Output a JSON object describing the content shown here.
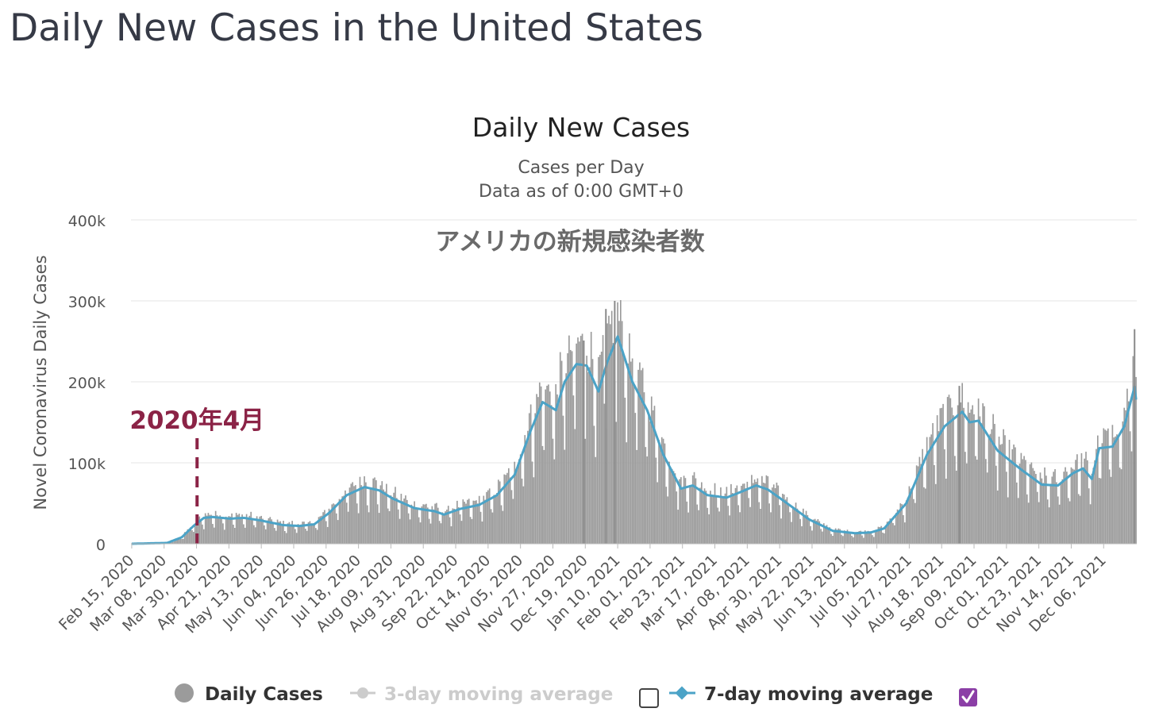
{
  "page": {
    "title": "Daily New Cases in the United States"
  },
  "chart_data": {
    "type": "bar",
    "title": "Daily New Cases",
    "subtitle_lines": [
      "Cases per Day",
      "Data as of 0:00 GMT+0"
    ],
    "overlay_text": "アメリカの新規感染者数",
    "ylabel": "Novel Coronavirus Daily Cases",
    "xlabel": "",
    "ylim": [
      0,
      400000
    ],
    "y_ticks": [
      {
        "value": 0,
        "label": "0"
      },
      {
        "value": 100000,
        "label": "100k"
      },
      {
        "value": 200000,
        "label": "200k"
      },
      {
        "value": 300000,
        "label": "300k"
      },
      {
        "value": 400000,
        "label": "400k"
      }
    ],
    "x_range": [
      "2020-02-15",
      "2021-12-28"
    ],
    "x_tick_labels": [
      {
        "date": "2020-02-15",
        "label": "Feb 15, 2020"
      },
      {
        "date": "2020-03-08",
        "label": "Mar 08, 2020"
      },
      {
        "date": "2020-03-30",
        "label": "Mar 30, 2020"
      },
      {
        "date": "2020-04-21",
        "label": "Apr 21, 2020"
      },
      {
        "date": "2020-05-13",
        "label": "May 13, 2020"
      },
      {
        "date": "2020-06-04",
        "label": "Jun 04, 2020"
      },
      {
        "date": "2020-06-26",
        "label": "Jun 26, 2020"
      },
      {
        "date": "2020-07-18",
        "label": "Jul 18, 2020"
      },
      {
        "date": "2020-08-09",
        "label": "Aug 09, 2020"
      },
      {
        "date": "2020-08-31",
        "label": "Aug 31, 2020"
      },
      {
        "date": "2020-09-22",
        "label": "Sep 22, 2020"
      },
      {
        "date": "2020-10-14",
        "label": "Oct 14, 2020"
      },
      {
        "date": "2020-11-05",
        "label": "Nov 05, 2020"
      },
      {
        "date": "2020-11-27",
        "label": "Nov 27, 2020"
      },
      {
        "date": "2020-12-19",
        "label": "Dec 19, 2020"
      },
      {
        "date": "2021-01-10",
        "label": "Jan 10, 2021"
      },
      {
        "date": "2021-02-01",
        "label": "Feb 01, 2021"
      },
      {
        "date": "2021-02-23",
        "label": "Feb 23, 2021"
      },
      {
        "date": "2021-03-17",
        "label": "Mar 17, 2021"
      },
      {
        "date": "2021-04-08",
        "label": "Apr 08, 2021"
      },
      {
        "date": "2021-04-30",
        "label": "Apr 30, 2021"
      },
      {
        "date": "2021-05-22",
        "label": "May 22, 2021"
      },
      {
        "date": "2021-06-13",
        "label": "Jun 13, 2021"
      },
      {
        "date": "2021-07-05",
        "label": "Jul 05, 2021"
      },
      {
        "date": "2021-07-27",
        "label": "Jul 27, 2021"
      },
      {
        "date": "2021-08-18",
        "label": "Aug 18, 2021"
      },
      {
        "date": "2021-09-09",
        "label": "Sep 09, 2021"
      },
      {
        "date": "2021-10-01",
        "label": "Oct 01, 2021"
      },
      {
        "date": "2021-10-23",
        "label": "Oct 23, 2021"
      },
      {
        "date": "2021-11-14",
        "label": "Nov 14, 2021"
      },
      {
        "date": "2021-12-06",
        "label": "Dec 06, 2021"
      }
    ],
    "annotation": {
      "label": "2020年4月",
      "date": "2020-04-01",
      "color": "#8b2346"
    },
    "series": [
      {
        "name": "Daily Cases",
        "kind": "bar",
        "color": "#9b9b9b",
        "visible": true,
        "shape": "daily bars; weekly dips; values follow the 7-day average with approx ±12% noise",
        "spikes": [
          {
            "date": "2021-01-08",
            "value": 300000
          },
          {
            "date": "2021-01-02",
            "value": 290000
          },
          {
            "date": "2020-12-18",
            "value": 251000
          },
          {
            "date": "2021-12-27",
            "value": 265000
          },
          {
            "date": "2021-08-30",
            "value": 195000
          }
        ]
      },
      {
        "name": "3-day moving average",
        "kind": "line",
        "color": "#cccccc",
        "visible": false
      },
      {
        "name": "7-day moving average",
        "kind": "line",
        "color": "#4ba3c7",
        "visible": true,
        "anchors": [
          {
            "date": "2020-02-15",
            "value": 0
          },
          {
            "date": "2020-03-10",
            "value": 1000
          },
          {
            "date": "2020-03-20",
            "value": 8000
          },
          {
            "date": "2020-03-28",
            "value": 22000
          },
          {
            "date": "2020-04-04",
            "value": 32000
          },
          {
            "date": "2020-04-10",
            "value": 33000
          },
          {
            "date": "2020-04-22",
            "value": 31000
          },
          {
            "date": "2020-05-01",
            "value": 32000
          },
          {
            "date": "2020-05-12",
            "value": 29000
          },
          {
            "date": "2020-05-28",
            "value": 23000
          },
          {
            "date": "2020-06-08",
            "value": 22000
          },
          {
            "date": "2020-06-18",
            "value": 24000
          },
          {
            "date": "2020-06-28",
            "value": 38000
          },
          {
            "date": "2020-07-10",
            "value": 60000
          },
          {
            "date": "2020-07-22",
            "value": 70000
          },
          {
            "date": "2020-08-01",
            "value": 66000
          },
          {
            "date": "2020-08-10",
            "value": 56000
          },
          {
            "date": "2020-08-25",
            "value": 44000
          },
          {
            "date": "2020-09-08",
            "value": 40000
          },
          {
            "date": "2020-09-14",
            "value": 36000
          },
          {
            "date": "2020-09-25",
            "value": 43000
          },
          {
            "date": "2020-10-08",
            "value": 48000
          },
          {
            "date": "2020-10-20",
            "value": 60000
          },
          {
            "date": "2020-11-01",
            "value": 85000
          },
          {
            "date": "2020-11-12",
            "value": 140000
          },
          {
            "date": "2020-11-20",
            "value": 175000
          },
          {
            "date": "2020-11-29",
            "value": 165000
          },
          {
            "date": "2020-12-05",
            "value": 200000
          },
          {
            "date": "2020-12-13",
            "value": 222000
          },
          {
            "date": "2020-12-20",
            "value": 220000
          },
          {
            "date": "2020-12-28",
            "value": 188000
          },
          {
            "date": "2021-01-03",
            "value": 225000
          },
          {
            "date": "2021-01-10",
            "value": 256000
          },
          {
            "date": "2021-01-20",
            "value": 200000
          },
          {
            "date": "2021-01-30",
            "value": 165000
          },
          {
            "date": "2021-02-10",
            "value": 110000
          },
          {
            "date": "2021-02-22",
            "value": 68000
          },
          {
            "date": "2021-03-02",
            "value": 72000
          },
          {
            "date": "2021-03-12",
            "value": 60000
          },
          {
            "date": "2021-03-25",
            "value": 57000
          },
          {
            "date": "2021-04-05",
            "value": 65000
          },
          {
            "date": "2021-04-14",
            "value": 72000
          },
          {
            "date": "2021-04-22",
            "value": 67000
          },
          {
            "date": "2021-05-05",
            "value": 50000
          },
          {
            "date": "2021-05-20",
            "value": 30000
          },
          {
            "date": "2021-06-05",
            "value": 16000
          },
          {
            "date": "2021-06-20",
            "value": 13000
          },
          {
            "date": "2021-07-01",
            "value": 14000
          },
          {
            "date": "2021-07-10",
            "value": 19000
          },
          {
            "date": "2021-07-25",
            "value": 50000
          },
          {
            "date": "2021-08-08",
            "value": 110000
          },
          {
            "date": "2021-08-20",
            "value": 145000
          },
          {
            "date": "2021-09-01",
            "value": 163000
          },
          {
            "date": "2021-09-06",
            "value": 150000
          },
          {
            "date": "2021-09-12",
            "value": 152000
          },
          {
            "date": "2021-09-25",
            "value": 115000
          },
          {
            "date": "2021-10-10",
            "value": 93000
          },
          {
            "date": "2021-10-25",
            "value": 73000
          },
          {
            "date": "2021-11-05",
            "value": 72000
          },
          {
            "date": "2021-11-15",
            "value": 87000
          },
          {
            "date": "2021-11-22",
            "value": 93000
          },
          {
            "date": "2021-11-28",
            "value": 80000
          },
          {
            "date": "2021-12-03",
            "value": 118000
          },
          {
            "date": "2021-12-12",
            "value": 120000
          },
          {
            "date": "2021-12-20",
            "value": 145000
          },
          {
            "date": "2021-12-27",
            "value": 194000
          },
          {
            "date": "2021-12-28",
            "value": 178000
          }
        ]
      }
    ],
    "legend": {
      "placement": "bottom",
      "items": [
        {
          "label": "Daily Cases",
          "marker": "circle",
          "color": "#9b9b9b",
          "active": true
        },
        {
          "label": "3-day moving average",
          "marker": "line-circle",
          "color": "#cccccc",
          "active": false,
          "checkbox": false
        },
        {
          "label": "7-day moving average",
          "marker": "line-diamond",
          "color": "#4ba3c7",
          "active": true,
          "checkbox": true
        }
      ]
    },
    "colors": {
      "gridline": "#e6e6e6",
      "checkbox_checked": "#8b3ea6"
    },
    "grid": true
  }
}
